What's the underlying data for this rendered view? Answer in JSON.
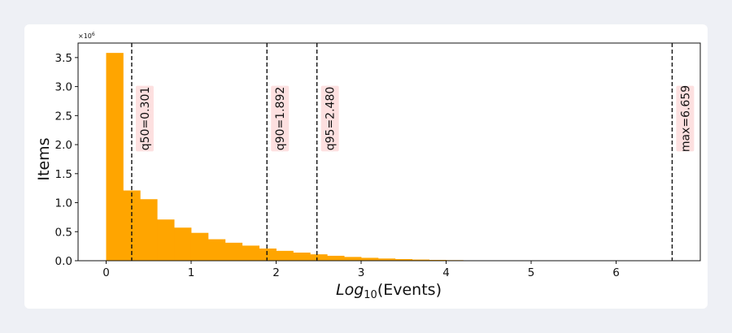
{
  "chart_data": {
    "type": "bar",
    "subtype": "histogram",
    "xlabel_main": "Log",
    "xlabel_sub": "10",
    "xlabel_tail": "(Events)",
    "ylabel": "Items",
    "y_scale_label": "×10⁶",
    "y_scale_base": "×10",
    "y_scale_exp": "6",
    "xlim": [
      -0.33,
      6.99
    ],
    "ylim": [
      0,
      3.75
    ],
    "xticks": [
      0,
      1,
      2,
      3,
      4,
      5,
      6
    ],
    "xtick_labels": [
      "0",
      "1",
      "2",
      "3",
      "4",
      "5",
      "6"
    ],
    "yticks": [
      0,
      0.5,
      1.0,
      1.5,
      2.0,
      2.5,
      3.0,
      3.5
    ],
    "ytick_labels": [
      "0.0",
      "0.5",
      "1.0",
      "1.5",
      "2.0",
      "2.5",
      "3.0",
      "3.5"
    ],
    "bin_width": 0.2,
    "bin_starts": [
      0,
      0.2,
      0.4,
      0.6,
      0.8,
      1.0,
      1.2,
      1.4,
      1.6,
      1.8,
      2.0,
      2.2,
      2.4,
      2.6,
      2.8,
      3.0,
      3.2,
      3.4,
      3.6,
      3.8,
      4.0,
      4.2,
      4.4,
      4.6,
      4.8,
      5.0,
      5.2,
      5.4,
      5.6,
      5.8,
      6.0,
      6.2,
      6.4
    ],
    "values": [
      3.58,
      1.21,
      1.06,
      0.71,
      0.57,
      0.48,
      0.37,
      0.31,
      0.26,
      0.21,
      0.17,
      0.14,
      0.11,
      0.085,
      0.065,
      0.05,
      0.038,
      0.028,
      0.02,
      0.014,
      0.01,
      0.007,
      0.005,
      0.0035,
      0.0025,
      0.0018,
      0.0012,
      0.0008,
      0.0005,
      0.0003,
      0.0002,
      0.0001,
      5e-05
    ],
    "bar_color": "#ffa500",
    "quantile_lines": [
      {
        "label": "q50=0.301",
        "x": 0.301
      },
      {
        "label": "q90=1.892",
        "x": 1.892
      },
      {
        "label": "q95=2.480",
        "x": 2.48
      },
      {
        "label": "max=6.659",
        "x": 6.659
      }
    ],
    "annotation_bg": "#fde0e0",
    "grid": false
  }
}
